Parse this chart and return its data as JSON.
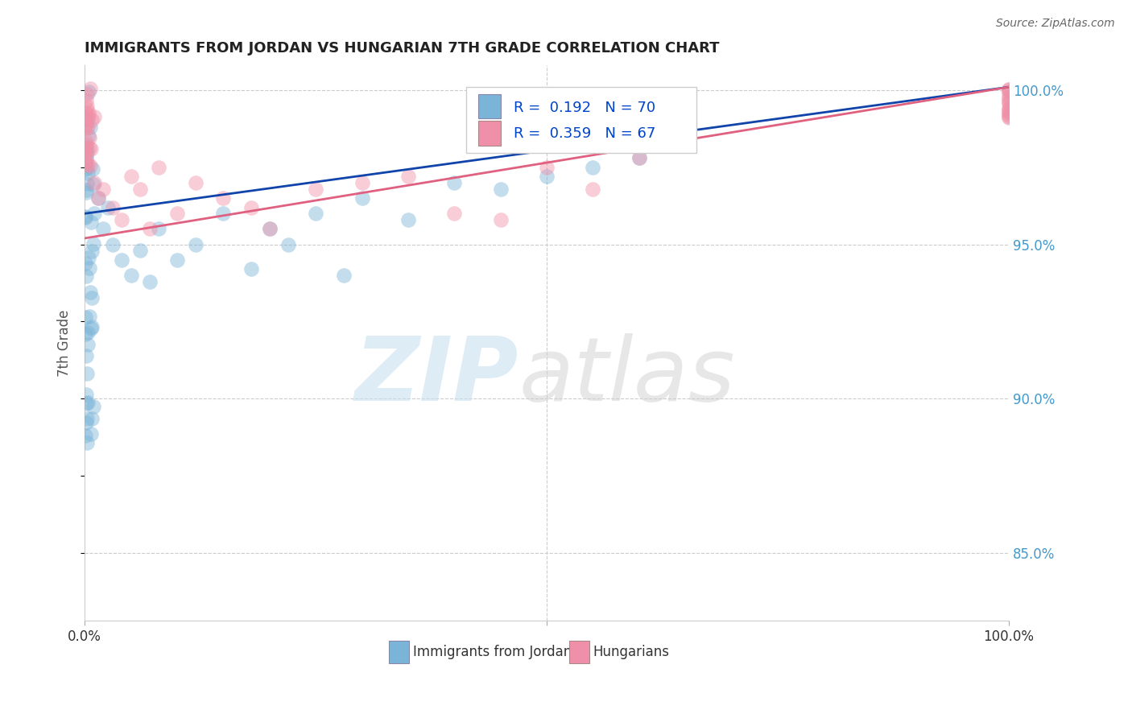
{
  "title": "IMMIGRANTS FROM JORDAN VS HUNGARIAN 7TH GRADE CORRELATION CHART",
  "source": "Source: ZipAtlas.com",
  "ylabel": "7th Grade",
  "ytick_labels": [
    "85.0%",
    "90.0%",
    "95.0%",
    "100.0%"
  ],
  "ytick_values": [
    0.85,
    0.9,
    0.95,
    1.0
  ],
  "xtick_labels": [
    "0.0%",
    "100.0%"
  ],
  "xtick_positions": [
    0.0,
    1.0
  ],
  "ylim": [
    0.828,
    1.008
  ],
  "xlim": [
    0.0,
    1.0
  ],
  "legend_entries": [
    "Immigrants from Jordan",
    "Hungarians"
  ],
  "legend_R_N": [
    {
      "R": "0.192",
      "N": "70",
      "color": "#aac8e8"
    },
    {
      "R": "0.359",
      "N": "67",
      "color": "#f0a8b8"
    }
  ],
  "blue_color": "#7ab4d8",
  "pink_color": "#f090a8",
  "blue_line_color": "#1144aa",
  "pink_line_color": "#e06080",
  "grid_color": "#cccccc",
  "background_color": "#ffffff",
  "title_color": "#222222",
  "source_color": "#666666",
  "axis_label_color": "#555555",
  "right_tick_color": "#4499cc"
}
